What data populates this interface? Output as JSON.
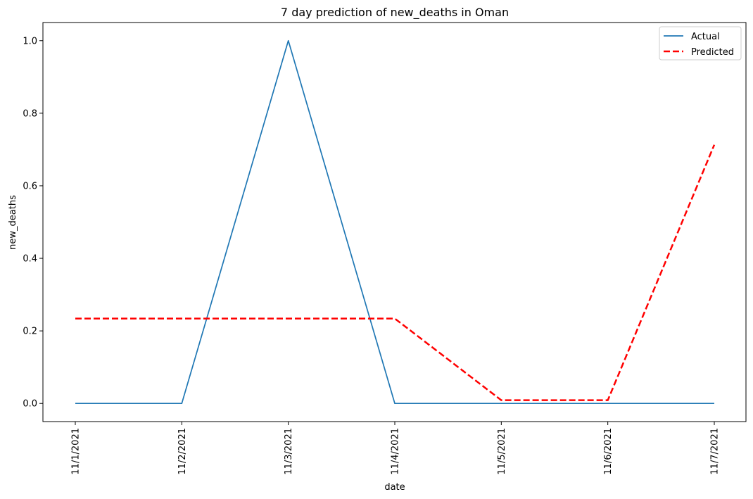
{
  "chart_data": {
    "type": "line",
    "title": "7 day prediction of new_deaths in Oman",
    "xlabel": "date",
    "ylabel": "new_deaths",
    "categories": [
      "11/1/2021",
      "11/2/2021",
      "11/3/2021",
      "11/4/2021",
      "11/5/2021",
      "11/6/2021",
      "11/7/2021"
    ],
    "ylim": [
      -0.05,
      1.05
    ],
    "yticks": [
      "0.0",
      "0.2",
      "0.4",
      "0.6",
      "0.8",
      "1.0"
    ],
    "grid": false,
    "legend_position": "top-right",
    "series": [
      {
        "name": "Actual",
        "color": "#1f77b4",
        "style": "solid",
        "values": [
          0,
          0,
          1,
          0,
          0,
          0,
          0
        ]
      },
      {
        "name": "Predicted",
        "color": "#ff0000",
        "style": "dashed",
        "values": [
          0.234,
          0.234,
          0.234,
          0.234,
          0.009,
          0.009,
          0.713
        ]
      }
    ]
  }
}
